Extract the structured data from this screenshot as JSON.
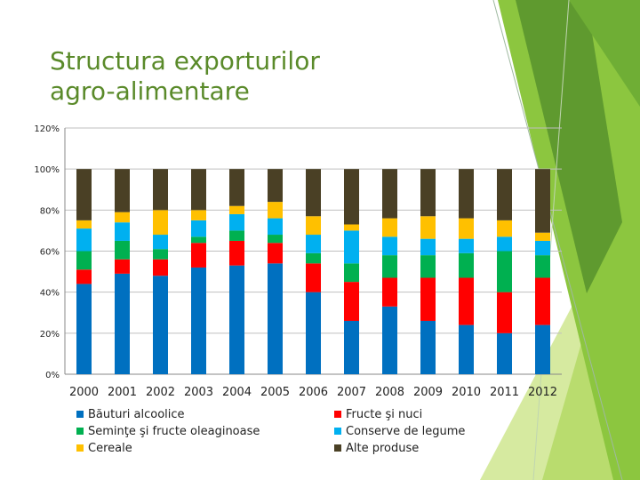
{
  "slide": {
    "title_line1": "Structura exporturilor",
    "title_line2": "agro-alimentare"
  },
  "decoration": {
    "green_dark": "#5f9a2f",
    "green_mid": "#8cc63f",
    "green_light": "#b9dc6e",
    "title_color": "#5a8a2a"
  },
  "chart_data": {
    "type": "bar",
    "stacked": true,
    "categories": [
      "2000",
      "2001",
      "2002",
      "2003",
      "2004",
      "2005",
      "2006",
      "2007",
      "2008",
      "2009",
      "2010",
      "2011",
      "2012"
    ],
    "yticks": [
      "0%",
      "20%",
      "40%",
      "60%",
      "80%",
      "100%",
      "120%"
    ],
    "ylim": [
      0,
      120
    ],
    "grid": true,
    "legend_position": "bottom",
    "series": [
      {
        "name": "Băuturi alcoolice",
        "color": "#0070c0",
        "values": [
          44,
          49,
          48,
          52,
          53,
          54,
          40,
          26,
          33,
          26,
          24,
          20,
          24
        ]
      },
      {
        "name": "Fructe şi nuci",
        "color": "#ff0000",
        "values": [
          7,
          7,
          8,
          12,
          12,
          10,
          14,
          19,
          14,
          21,
          23,
          20,
          23
        ]
      },
      {
        "name": "Seminţe şi fructe oleaginoase",
        "color": "#00b050",
        "values": [
          9,
          9,
          5,
          3,
          5,
          4,
          5,
          9,
          11,
          11,
          12,
          20,
          11
        ]
      },
      {
        "name": "Conserve de legume",
        "color": "#00b0f0",
        "values": [
          11,
          9,
          7,
          8,
          8,
          8,
          9,
          16,
          9,
          8,
          7,
          7,
          7
        ]
      },
      {
        "name": "Cereale",
        "color": "#ffc000",
        "values": [
          4,
          5,
          12,
          5,
          4,
          8,
          9,
          3,
          9,
          11,
          10,
          8,
          4
        ]
      },
      {
        "name": "Alte produse",
        "color": "#4a4025",
        "values": [
          25,
          21,
          20,
          20,
          18,
          16,
          23,
          27,
          24,
          23,
          24,
          25,
          31
        ]
      }
    ]
  }
}
